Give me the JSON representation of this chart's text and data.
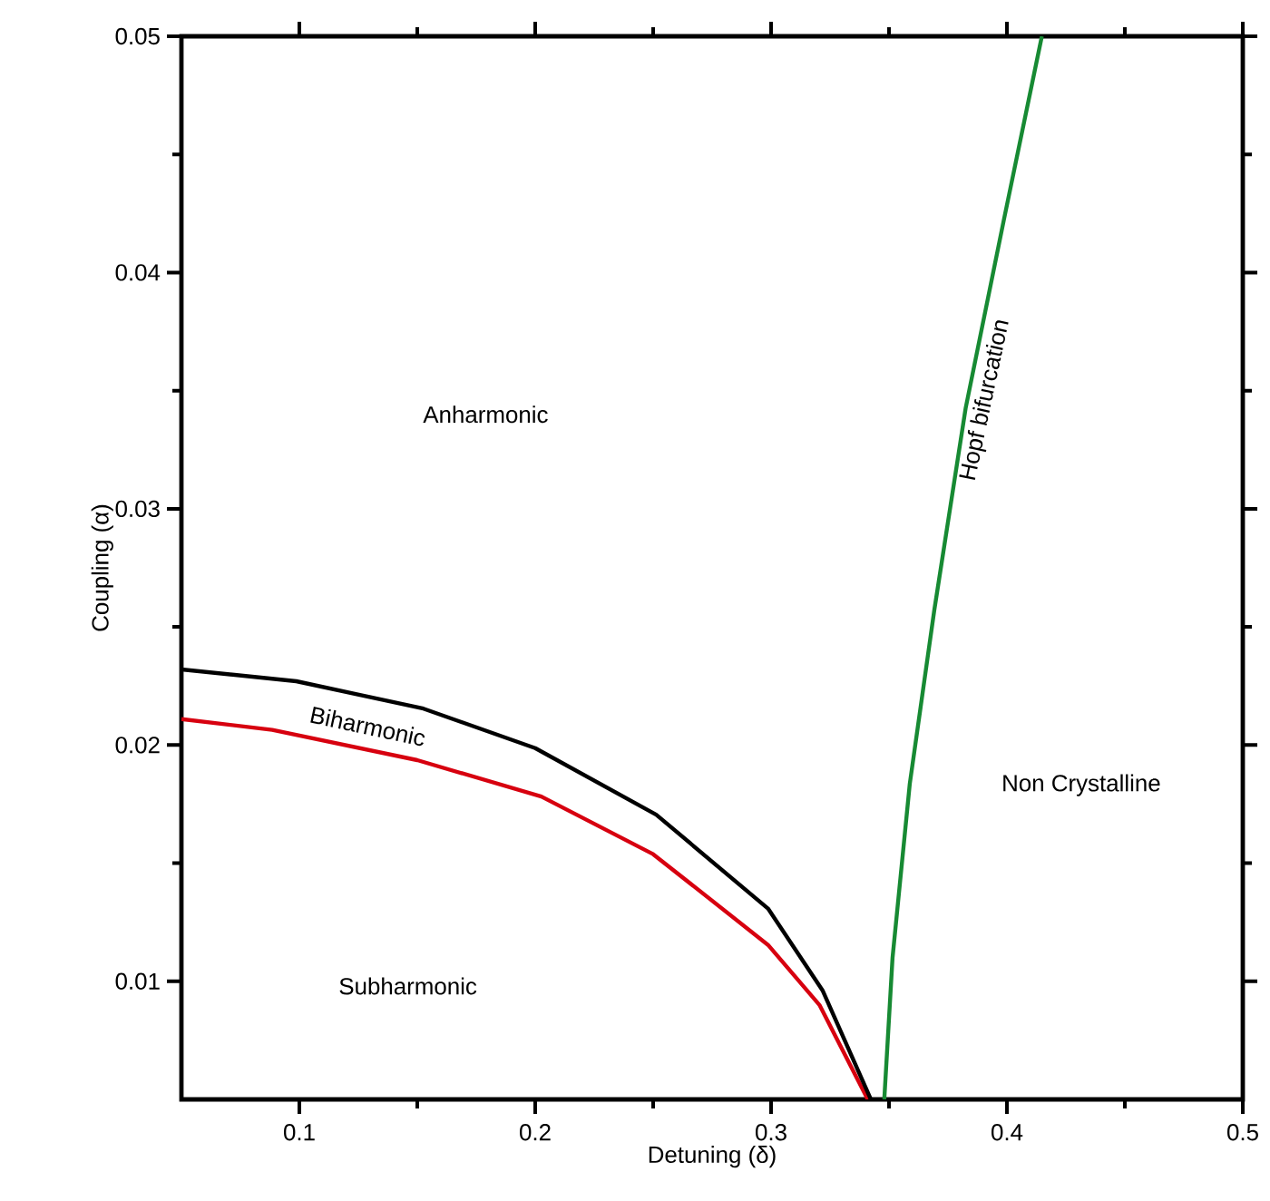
{
  "chart_data": {
    "type": "line",
    "xlabel": "Detuning (δ)",
    "ylabel": "Coupling (α)",
    "xlim": [
      0.05,
      0.5
    ],
    "ylim": [
      0.005,
      0.05
    ],
    "xticks": [
      0.1,
      0.2,
      0.3,
      0.4,
      0.5
    ],
    "yticks": [
      0.01,
      0.02,
      0.03,
      0.04,
      0.05
    ],
    "marker": "none",
    "line_style": "solid",
    "series": [
      {
        "color": "#d7000f",
        "x": [
          0.05,
          0.0885,
          0.15,
          0.2026,
          0.25,
          0.2987,
          0.3205,
          0.341
        ],
        "values": [
          0.0211,
          0.02064,
          0.01936,
          0.01782,
          0.01538,
          0.01154,
          0.009,
          0.005
        ]
      },
      {
        "color": "#000000",
        "x": [
          0.05,
          0.0987,
          0.1526,
          0.2,
          0.2513,
          0.2987,
          0.3218,
          0.3423
        ],
        "values": [
          0.0232,
          0.0227,
          0.02154,
          0.01987,
          0.01705,
          0.01308,
          0.00962,
          0.005
        ]
      },
      {
        "color": "#178a33",
        "x": [
          0.348,
          0.3515,
          0.3588,
          0.3692,
          0.3825,
          0.3987,
          0.4148
        ],
        "values": [
          0.005,
          0.011,
          0.01835,
          0.02571,
          0.03426,
          0.04223,
          0.05
        ]
      }
    ],
    "annotations": [
      "Anharmonic",
      "Biharmonic",
      "Subharmonic",
      "Non Crystalline",
      "Hopf bifurcation"
    ]
  }
}
